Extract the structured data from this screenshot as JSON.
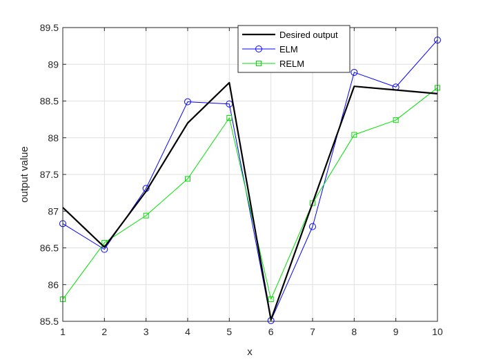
{
  "chart_data": {
    "type": "line",
    "title": "",
    "xlabel": "x",
    "ylabel": "output value",
    "xlim": [
      1,
      10
    ],
    "ylim": [
      85.5,
      89.5
    ],
    "xticks": [
      "1",
      "2",
      "3",
      "4",
      "5",
      "6",
      "7",
      "8",
      "9",
      "10"
    ],
    "yticks": [
      "85.5",
      "86",
      "86.5",
      "87",
      "87.5",
      "88",
      "88.5",
      "89",
      "89.5"
    ],
    "grid": true,
    "legend_position": "top-right",
    "x": [
      1,
      2,
      3,
      4,
      5,
      6,
      7,
      8,
      9,
      10
    ],
    "series": [
      {
        "name": "Desired output",
        "color": "#000000",
        "marker": "none",
        "values": [
          87.05,
          86.51,
          87.27,
          88.2,
          88.75,
          85.52,
          87.11,
          88.7,
          88.65,
          88.6
        ]
      },
      {
        "name": "ELM",
        "color": "#0000ff",
        "marker": "circle",
        "values": [
          86.83,
          86.48,
          87.31,
          88.49,
          88.46,
          85.51,
          86.79,
          88.89,
          88.69,
          89.33
        ]
      },
      {
        "name": "RELM",
        "color": "#00e000",
        "marker": "square",
        "values": [
          85.8,
          86.57,
          86.94,
          87.44,
          88.27,
          85.8,
          87.11,
          88.04,
          88.24,
          88.68
        ]
      }
    ]
  }
}
